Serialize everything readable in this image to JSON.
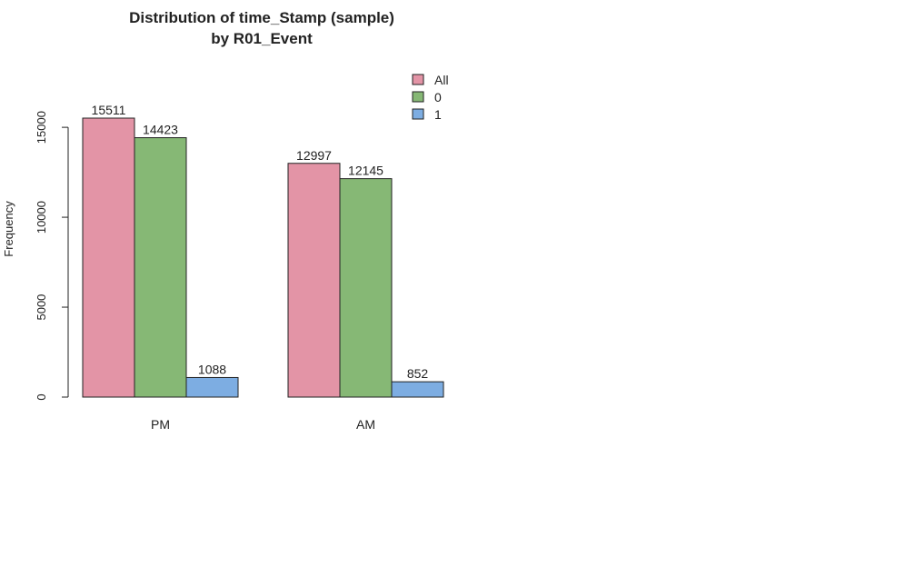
{
  "chart_data": {
    "type": "bar",
    "title_line1": "Distribution of time_Stamp (sample)",
    "title_line2": "by R01_Event",
    "xlabel": "",
    "ylabel": "Frequency",
    "ylim": [
      0,
      15511
    ],
    "yticks": [
      0,
      5000,
      10000,
      15000
    ],
    "categories": [
      "PM",
      "AM"
    ],
    "series": [
      {
        "name": "All",
        "color": "#e394a6",
        "values": [
          15511,
          12997
        ]
      },
      {
        "name": "0",
        "color": "#86b875",
        "values": [
          14423,
          12145
        ]
      },
      {
        "name": "1",
        "color": "#7dade2",
        "values": [
          1088,
          852
        ]
      }
    ],
    "legend_position": "top-right"
  }
}
